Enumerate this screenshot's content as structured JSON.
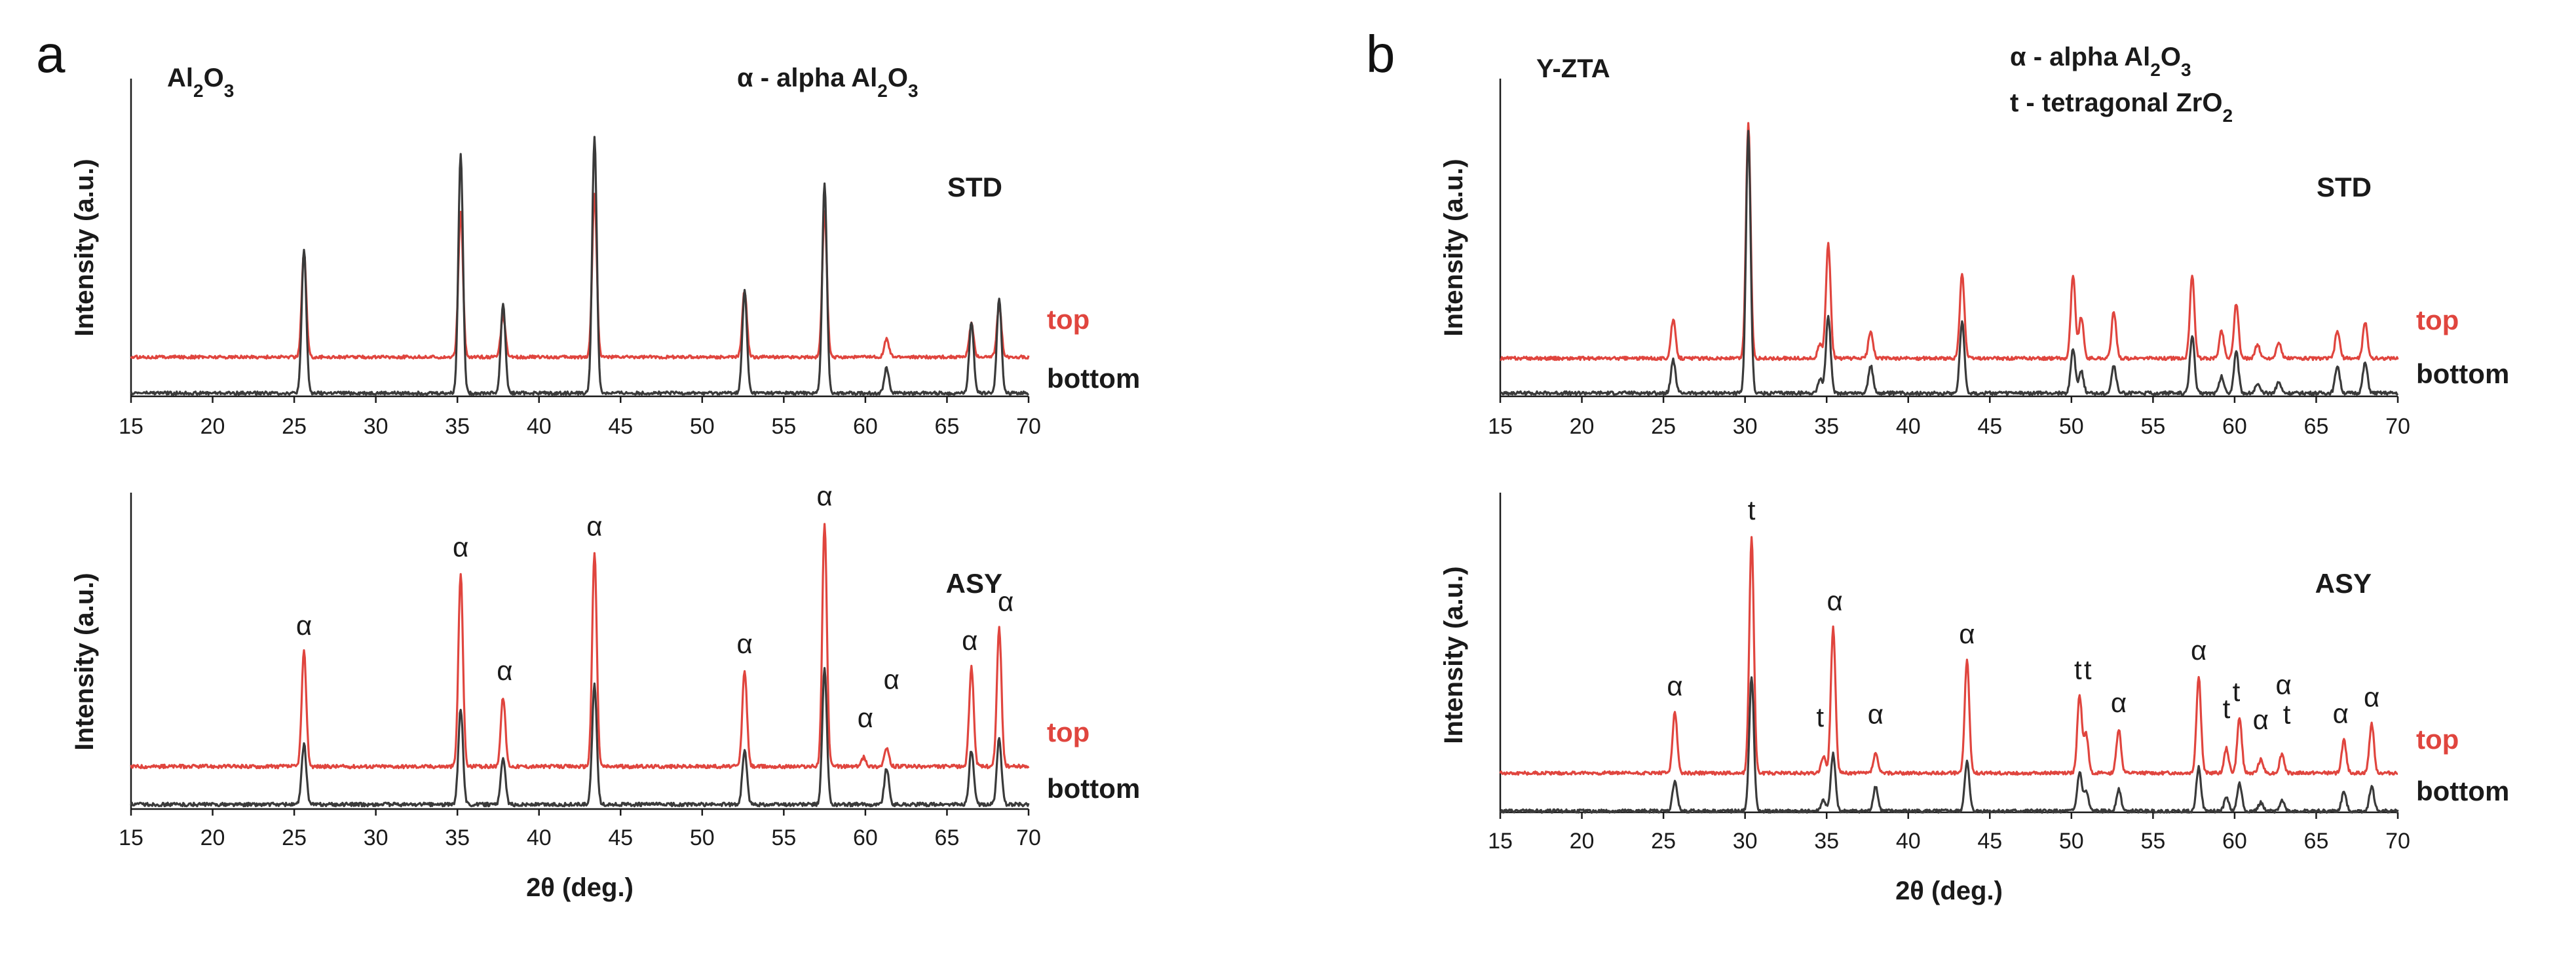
{
  "colors": {
    "top": "#e0453e",
    "bottom": "#3a3a3a",
    "axis": "#1a1a1a"
  },
  "chart_data": [
    {
      "id": "a-std",
      "type": "line",
      "panel": "a",
      "panel_letter": "a",
      "title": "Al2O3",
      "legend_title": "α - alpha Al2O3",
      "tag": "STD",
      "ylabel": "Intensity (a.u.)",
      "xlabel": "",
      "xlim": [
        15,
        70
      ],
      "x_ticks": [
        15,
        20,
        25,
        30,
        35,
        40,
        45,
        50,
        55,
        60,
        65,
        70
      ],
      "series": [
        {
          "name": "top",
          "color_key": "top",
          "peaks": [
            [
              25.6,
              0.41
            ],
            [
              35.2,
              0.57
            ],
            [
              37.8,
              0.16
            ],
            [
              43.4,
              0.64
            ],
            [
              52.6,
              0.26
            ],
            [
              57.5,
              0.57
            ],
            [
              61.3,
              0.07
            ],
            [
              66.5,
              0.13
            ],
            [
              68.2,
              0.2
            ]
          ]
        },
        {
          "name": "bottom",
          "color_key": "bottom",
          "peaks": [
            [
              25.6,
              0.56
            ],
            [
              35.2,
              0.94
            ],
            [
              37.8,
              0.35
            ],
            [
              43.4,
              1.0
            ],
            [
              52.6,
              0.4
            ],
            [
              57.5,
              0.82
            ],
            [
              61.3,
              0.1
            ],
            [
              66.5,
              0.28
            ],
            [
              68.2,
              0.37
            ]
          ]
        }
      ],
      "peak_labels": []
    },
    {
      "id": "a-asy",
      "type": "line",
      "panel": "a",
      "title": "",
      "legend_title": "",
      "tag": "ASY",
      "ylabel": "Intensity (a.u.)",
      "xlabel": "2θ (deg.)",
      "xlim": [
        15,
        70
      ],
      "x_ticks": [
        15,
        20,
        25,
        30,
        35,
        40,
        45,
        50,
        55,
        60,
        65,
        70
      ],
      "series": [
        {
          "name": "top",
          "color_key": "top",
          "peaks": [
            [
              25.6,
              0.38
            ],
            [
              35.2,
              0.64
            ],
            [
              37.8,
              0.23
            ],
            [
              43.4,
              0.71
            ],
            [
              52.6,
              0.32
            ],
            [
              57.5,
              0.81
            ],
            [
              59.9,
              0.03
            ],
            [
              61.3,
              0.06
            ],
            [
              66.5,
              0.33
            ],
            [
              68.2,
              0.46
            ]
          ]
        },
        {
          "name": "bottom",
          "color_key": "bottom",
          "peaks": [
            [
              25.6,
              0.2
            ],
            [
              35.2,
              0.32
            ],
            [
              37.8,
              0.15
            ],
            [
              43.4,
              0.4
            ],
            [
              52.6,
              0.18
            ],
            [
              57.5,
              0.45
            ],
            [
              61.3,
              0.12
            ],
            [
              66.5,
              0.18
            ],
            [
              68.2,
              0.22
            ]
          ]
        }
      ],
      "peak_labels": [
        {
          "x": 25.6,
          "text": "α"
        },
        {
          "x": 35.2,
          "text": "α"
        },
        {
          "x": 37.9,
          "text": "α"
        },
        {
          "x": 43.4,
          "text": "α"
        },
        {
          "x": 52.6,
          "text": "α"
        },
        {
          "x": 57.5,
          "text": "α"
        },
        {
          "x": 60.0,
          "text": "α"
        },
        {
          "x": 61.6,
          "text": "α"
        },
        {
          "x": 66.4,
          "text": "α"
        },
        {
          "x": 68.6,
          "text": "α"
        }
      ]
    },
    {
      "id": "b-std",
      "type": "line",
      "panel": "b",
      "panel_letter": "b",
      "title": "Y-ZTA",
      "legend_title": "α - alpha Al2O3",
      "legend_title_2": "t - tetragonal ZrO2",
      "tag": "STD",
      "ylabel": "Intensity (a.u.)",
      "xlabel": "",
      "xlim": [
        15,
        70
      ],
      "x_ticks": [
        15,
        20,
        25,
        30,
        35,
        40,
        45,
        50,
        55,
        60,
        65,
        70
      ],
      "series": [
        {
          "name": "top",
          "color_key": "top",
          "peaks": [
            [
              25.6,
              0.14
            ],
            [
              30.2,
              0.85
            ],
            [
              34.6,
              0.05
            ],
            [
              35.1,
              0.42
            ],
            [
              37.7,
              0.1
            ],
            [
              43.3,
              0.31
            ],
            [
              50.1,
              0.3
            ],
            [
              50.6,
              0.15
            ],
            [
              52.6,
              0.17
            ],
            [
              57.4,
              0.3
            ],
            [
              59.2,
              0.1
            ],
            [
              60.1,
              0.2
            ],
            [
              61.4,
              0.05
            ],
            [
              62.7,
              0.06
            ],
            [
              66.3,
              0.1
            ],
            [
              68.0,
              0.13
            ]
          ]
        },
        {
          "name": "bottom",
          "color_key": "bottom",
          "peaks": [
            [
              25.6,
              0.12
            ],
            [
              30.2,
              0.95
            ],
            [
              34.6,
              0.05
            ],
            [
              35.1,
              0.28
            ],
            [
              37.7,
              0.1
            ],
            [
              43.3,
              0.26
            ],
            [
              50.1,
              0.16
            ],
            [
              50.6,
              0.08
            ],
            [
              52.6,
              0.1
            ],
            [
              57.4,
              0.21
            ],
            [
              59.2,
              0.06
            ],
            [
              60.1,
              0.15
            ],
            [
              61.4,
              0.03
            ],
            [
              62.7,
              0.04
            ],
            [
              66.3,
              0.1
            ],
            [
              68.0,
              0.11
            ]
          ]
        }
      ],
      "peak_labels": []
    },
    {
      "id": "b-asy",
      "type": "line",
      "panel": "b",
      "title": "",
      "legend_title": "",
      "tag": "ASY",
      "ylabel": "Intensity (a.u.)",
      "xlabel": "2θ (deg.)",
      "xlim": [
        15,
        70
      ],
      "x_ticks": [
        15,
        20,
        25,
        30,
        35,
        40,
        45,
        50,
        55,
        60,
        65,
        70
      ],
      "series": [
        {
          "name": "top",
          "color_key": "top",
          "peaks": [
            [
              25.7,
              0.22
            ],
            [
              30.4,
              0.86
            ],
            [
              34.8,
              0.06
            ],
            [
              35.4,
              0.53
            ],
            [
              38.0,
              0.07
            ],
            [
              43.6,
              0.41
            ],
            [
              50.5,
              0.28
            ],
            [
              50.9,
              0.14
            ],
            [
              52.9,
              0.16
            ],
            [
              57.8,
              0.35
            ],
            [
              59.5,
              0.09
            ],
            [
              60.3,
              0.2
            ],
            [
              61.6,
              0.05
            ],
            [
              62.9,
              0.07
            ],
            [
              66.7,
              0.12
            ],
            [
              68.4,
              0.18
            ]
          ]
        },
        {
          "name": "bottom",
          "color_key": "bottom",
          "peaks": [
            [
              25.7,
              0.11
            ],
            [
              30.4,
              0.49
            ],
            [
              34.8,
              0.04
            ],
            [
              35.4,
              0.21
            ],
            [
              38.0,
              0.09
            ],
            [
              43.6,
              0.18
            ],
            [
              50.5,
              0.14
            ],
            [
              50.9,
              0.07
            ],
            [
              52.9,
              0.08
            ],
            [
              57.8,
              0.16
            ],
            [
              59.5,
              0.05
            ],
            [
              60.3,
              0.1
            ],
            [
              61.6,
              0.03
            ],
            [
              62.9,
              0.04
            ],
            [
              66.7,
              0.07
            ],
            [
              68.4,
              0.09
            ]
          ]
        }
      ],
      "peak_labels": [
        {
          "x": 25.7,
          "text": "α"
        },
        {
          "x": 30.4,
          "text": "t"
        },
        {
          "x": 34.6,
          "text": "t"
        },
        {
          "x": 35.5,
          "text": "α"
        },
        {
          "x": 38.0,
          "text": "α"
        },
        {
          "x": 43.6,
          "text": "α"
        },
        {
          "x": 50.4,
          "text": "t"
        },
        {
          "x": 51.0,
          "text": "t"
        },
        {
          "x": 52.9,
          "text": "α"
        },
        {
          "x": 57.8,
          "text": "α"
        },
        {
          "x": 59.5,
          "text": "t"
        },
        {
          "x": 60.1,
          "text": "t"
        },
        {
          "x": 61.6,
          "text": "α"
        },
        {
          "x": 63.0,
          "text": "α"
        },
        {
          "x": 63.2,
          "text": "t"
        },
        {
          "x": 66.5,
          "text": "α"
        },
        {
          "x": 68.4,
          "text": "α"
        }
      ]
    }
  ]
}
